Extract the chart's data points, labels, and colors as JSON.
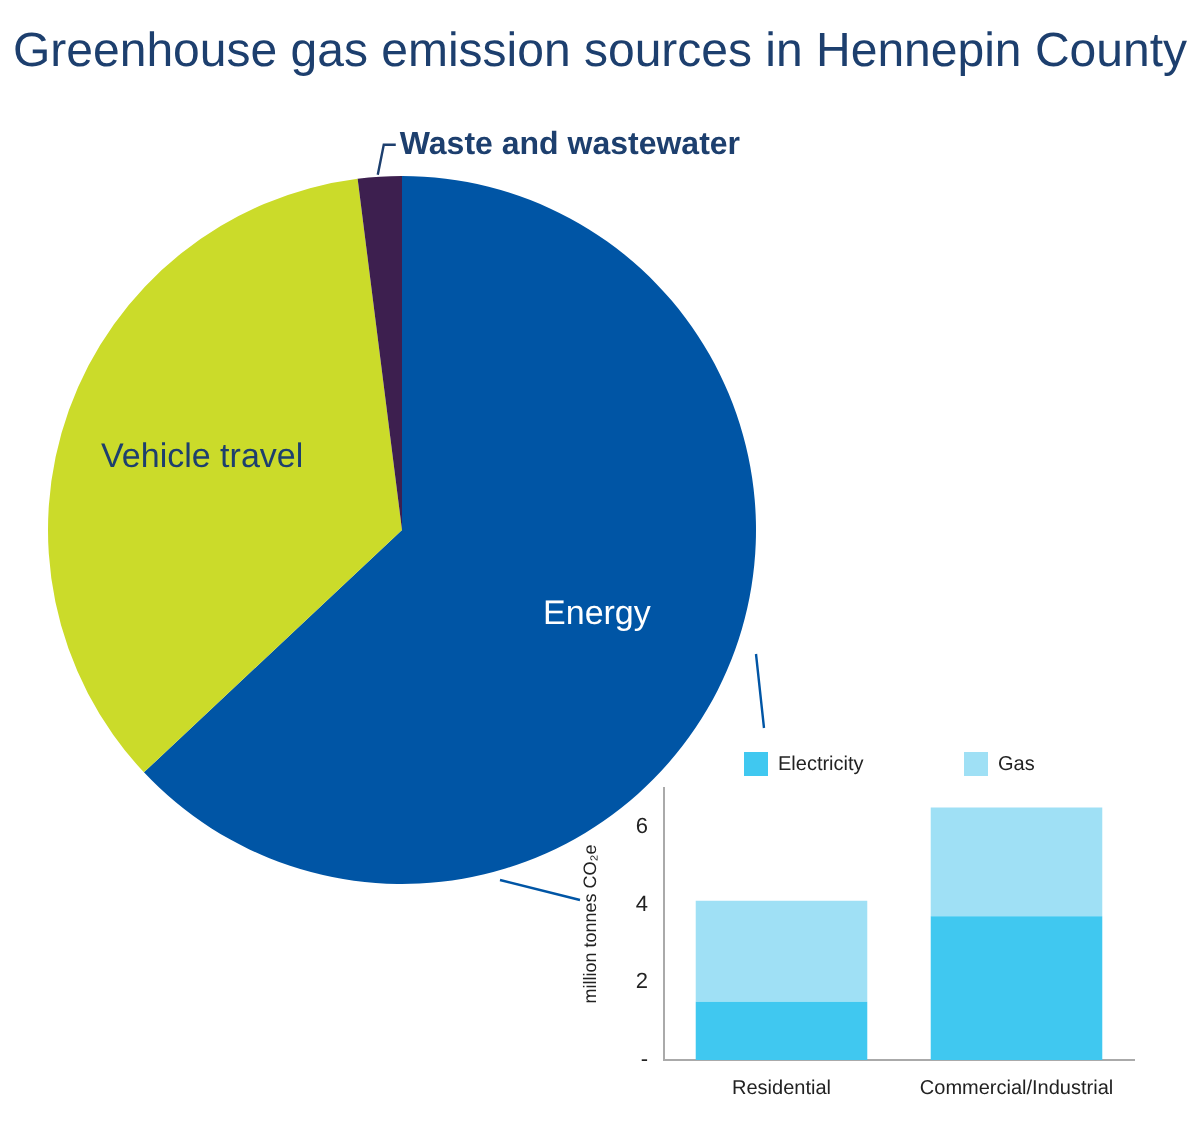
{
  "chart_data": [
    {
      "type": "pie",
      "title": "Greenhouse gas emission sources in Hennepin County",
      "categories": [
        "Energy",
        "Vehicle travel",
        "Waste and wastewater"
      ],
      "values": [
        63,
        35,
        2
      ],
      "colors": [
        "#0055a5",
        "#cbdb2a",
        "#3d1f4f"
      ],
      "legend": false
    },
    {
      "type": "bar",
      "stacked": true,
      "categories": [
        "Residential",
        "Commercial/Industrial"
      ],
      "ylabel": "million tonnes CO₂e",
      "ylim": [
        0,
        7
      ],
      "yticks": [
        {
          "value": 0,
          "label": "-"
        },
        2,
        4,
        6
      ],
      "grid": false,
      "legend": "top",
      "series": [
        {
          "name": "Electricity",
          "color": "#40c8f0",
          "values": [
            1.5,
            3.7
          ]
        },
        {
          "name": "Gas",
          "color": "#9fe0f5",
          "values": [
            2.6,
            2.8
          ]
        }
      ]
    }
  ]
}
